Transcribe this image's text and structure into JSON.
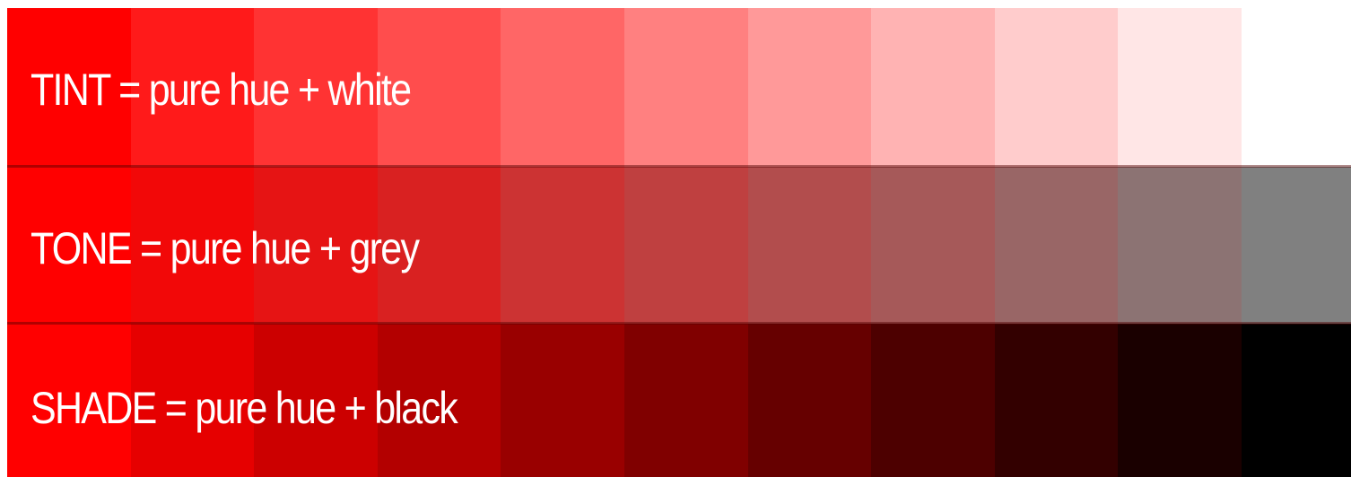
{
  "rows": [
    {
      "label": "TINT = pure hue + white",
      "swatches": [
        "#ff0000",
        "#ff1a1a",
        "#ff3333",
        "#ff4d4d",
        "#ff6666",
        "#ff8080",
        "#ff9999",
        "#ffb3b3",
        "#ffcccc",
        "#ffe6e6",
        "#ffffff"
      ]
    },
    {
      "label": "TONE = pure hue + grey",
      "swatches": [
        "#ff0000",
        "#f20808",
        "#e61414",
        "#d92121",
        "#cc3333",
        "#bf4040",
        "#b24d4d",
        "#a65959",
        "#996666",
        "#8c7373",
        "#808080"
      ]
    },
    {
      "label": "SHADE = pure hue + black",
      "swatches": [
        "#ff0000",
        "#e60000",
        "#cc0000",
        "#b30000",
        "#990000",
        "#800000",
        "#660000",
        "#4d0000",
        "#330000",
        "#1a0000",
        "#000000"
      ]
    }
  ]
}
